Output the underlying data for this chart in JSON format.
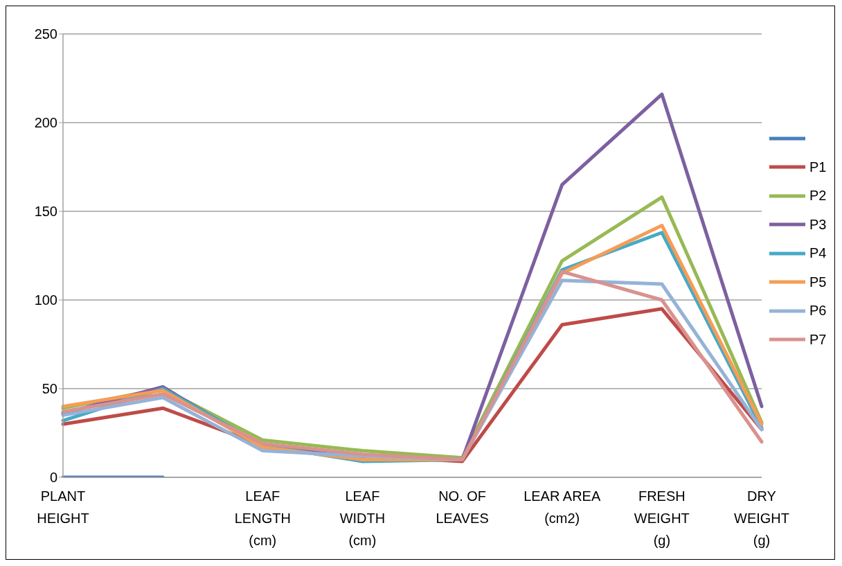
{
  "chart_data": {
    "type": "line",
    "categories": [
      "PLANT HEIGHT",
      null,
      "LEAF LENGTH (cm)",
      "LEAF WIDTH (cm)",
      "NO. OF LEAVES",
      "LEAR AREA (cm2)",
      "FRESH WEIGHT (g)",
      "DRY WEIGHT (g)"
    ],
    "series": [
      {
        "color": "#4a7ebb",
        "values": [
          0,
          0,
          null,
          null,
          null,
          null,
          null,
          null
        ]
      },
      {
        "name": "P1",
        "color": "#be4b48",
        "values": [
          30,
          39,
          18,
          12,
          9,
          86,
          95,
          27
        ]
      },
      {
        "name": "P2",
        "color": "#98b954",
        "values": [
          39,
          50,
          21,
          15,
          11,
          122,
          158,
          31
        ]
      },
      {
        "name": "P3",
        "color": "#7d60a0",
        "values": [
          36,
          51,
          17,
          12,
          10,
          165,
          216,
          40
        ]
      },
      {
        "name": "P4",
        "color": "#46aac5",
        "values": [
          32,
          50,
          18,
          9,
          10,
          117,
          138,
          28
        ]
      },
      {
        "name": "P5",
        "color": "#f59d56",
        "values": [
          40,
          49,
          17,
          10,
          10,
          115,
          142,
          30
        ]
      },
      {
        "name": "P6",
        "color": "#95b3d7",
        "values": [
          35,
          45,
          15,
          12,
          10,
          111,
          109,
          27
        ]
      },
      {
        "name": "P7",
        "color": "#d9928f",
        "values": [
          37,
          47,
          19,
          13,
          10,
          116,
          100,
          20
        ]
      }
    ],
    "ylim": [
      0,
      250
    ],
    "yticks": [
      0,
      50,
      100,
      150,
      200,
      250
    ],
    "grid": "y",
    "legend": "right",
    "marker": "none",
    "line_style": "solid"
  }
}
